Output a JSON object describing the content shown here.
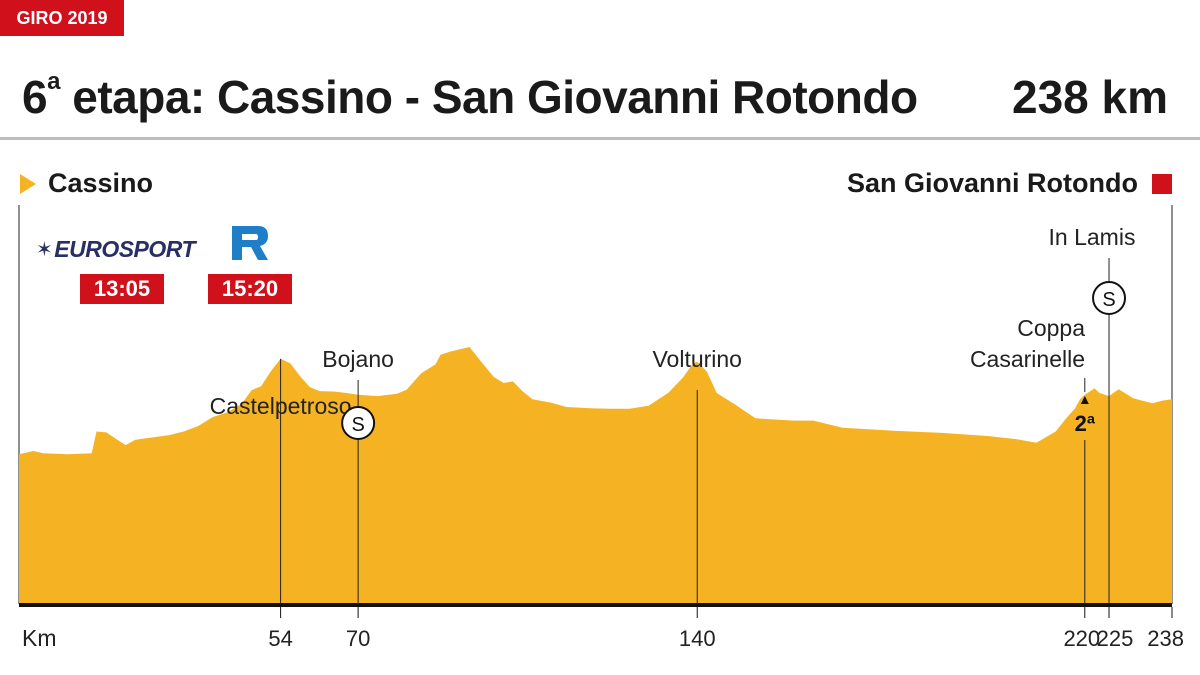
{
  "header": {
    "tag": "GIRO 2019",
    "title_num": "6",
    "title_sup": "a",
    "title_rest": " etapa: Cassino - San Giovanni Rotondo",
    "distance": "238 km"
  },
  "route": {
    "start": "Cassino",
    "finish": "San Giovanni Rotondo"
  },
  "broadcast": {
    "channels": [
      {
        "name": "EUROSPORT",
        "icon": "eurosport-star-icon",
        "time": "13:05"
      },
      {
        "name": "",
        "icon": "rai-sport-logo-icon",
        "time": "15:20"
      }
    ]
  },
  "colors": {
    "fill": "#f5b324",
    "red": "#d0101b",
    "navy": "#2a2f63",
    "rai_blue": "#1e7ec8"
  },
  "chart_data": {
    "type": "area",
    "title": "6ª etapa: Cassino - San Giovanni Rotondo",
    "xlabel": "Km",
    "ylabel": "",
    "xlim": [
      0,
      238
    ],
    "ylim": [
      0,
      1000
    ],
    "y_unit": "relative elevation (no scale printed)",
    "grid": false,
    "profile": {
      "x": [
        0,
        3,
        5,
        10,
        15,
        16,
        18,
        22,
        24,
        27,
        31,
        34,
        37,
        40,
        43,
        46,
        48,
        50,
        52,
        54,
        56,
        58,
        60,
        62,
        65,
        68,
        70,
        74,
        78,
        80,
        83,
        86,
        87,
        89,
        91,
        93,
        95,
        98,
        100,
        102,
        104,
        106,
        110,
        113,
        118,
        122,
        126,
        130,
        134,
        137,
        139,
        140,
        142,
        144,
        148,
        152,
        160,
        164,
        170,
        180,
        190,
        200,
        206,
        210,
        214,
        216,
        218,
        219,
        220,
        222,
        223,
        225,
        227,
        230,
        234,
        236,
        238
      ],
      "y": [
        330,
        337,
        332,
        330,
        332,
        380,
        378,
        350,
        362,
        366,
        372,
        380,
        392,
        412,
        422,
        441,
        471,
        480,
        513,
        540,
        530,
        502,
        478,
        469,
        468,
        464,
        461,
        458,
        463,
        472,
        508,
        528,
        549,
        556,
        561,
        566,
        539,
        500,
        487,
        490,
        468,
        451,
        443,
        434,
        431,
        430,
        430,
        437,
        465,
        498,
        528,
        534,
        512,
        465,
        438,
        409,
        404,
        404,
        388,
        382,
        377,
        370,
        363,
        355,
        380,
        407,
        431,
        451,
        461,
        475,
        465,
        458,
        473,
        453,
        442,
        448,
        451
      ]
    },
    "annotations": [
      {
        "km": 54,
        "label": "Castelpetroso",
        "sprint": false,
        "kom": ""
      },
      {
        "km": 70,
        "label": "Bojano",
        "sprint": true,
        "kom": ""
      },
      {
        "km": 140,
        "label": "Volturino",
        "sprint": false,
        "kom": ""
      },
      {
        "km": 220,
        "label": "Coppa Casarinelle",
        "sprint": false,
        "kom": "2ª"
      },
      {
        "km": 225,
        "label": "In Lamis",
        "sprint": true,
        "kom": ""
      }
    ],
    "ticks": [
      "54",
      "70",
      "140",
      "220",
      "225",
      "238"
    ],
    "sprint_symbol": "S"
  }
}
